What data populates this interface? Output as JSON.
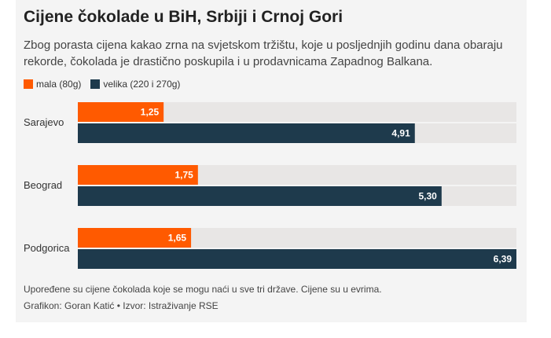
{
  "header": {
    "title": "Cijene čokolade u BiH, Srbiji i Crnoj Gori",
    "subtitle": "Zbog porasta cijena kakao zrna na svjetskom tržištu, koje u posljednjih godinu dana obaraju rekorde, čokolada je drastično poskupila i u prodavnicama Zapadnog Balkana."
  },
  "legend": {
    "small": "mala (80g)",
    "large": "velika (220 i 270g)"
  },
  "footer": {
    "note": "Upoređene su cijene čokolada koje se mogu naći u sve tri države. Cijene su u evrima.",
    "credit": "Grafikon: Goran Katić • Izvor: Istraživanje RSE"
  },
  "colors": {
    "small": "#ff5a00",
    "large": "#1e3a4c",
    "track": "#e8e6e5",
    "card_bg": "#f4f4f4",
    "label_text": "#ffffff"
  },
  "chart_data": {
    "type": "bar",
    "orientation": "horizontal",
    "categories": [
      "Sarajevo",
      "Beograd",
      "Podgorica"
    ],
    "series": [
      {
        "name": "mala (80g)",
        "values": [
          1.25,
          1.75,
          1.65
        ],
        "labels": [
          "1,25",
          "1,75",
          "1,65"
        ]
      },
      {
        "name": "velika (220 i 270g)",
        "values": [
          4.91,
          5.3,
          6.39
        ],
        "labels": [
          "4,91",
          "5,30",
          "6,39"
        ]
      }
    ],
    "xlim": [
      0,
      6.39
    ],
    "grid": false,
    "legend_position": "top-left",
    "title": "Cijene čokolade u BiH, Srbiji i Crnoj Gori",
    "xlabel": "",
    "ylabel": ""
  }
}
